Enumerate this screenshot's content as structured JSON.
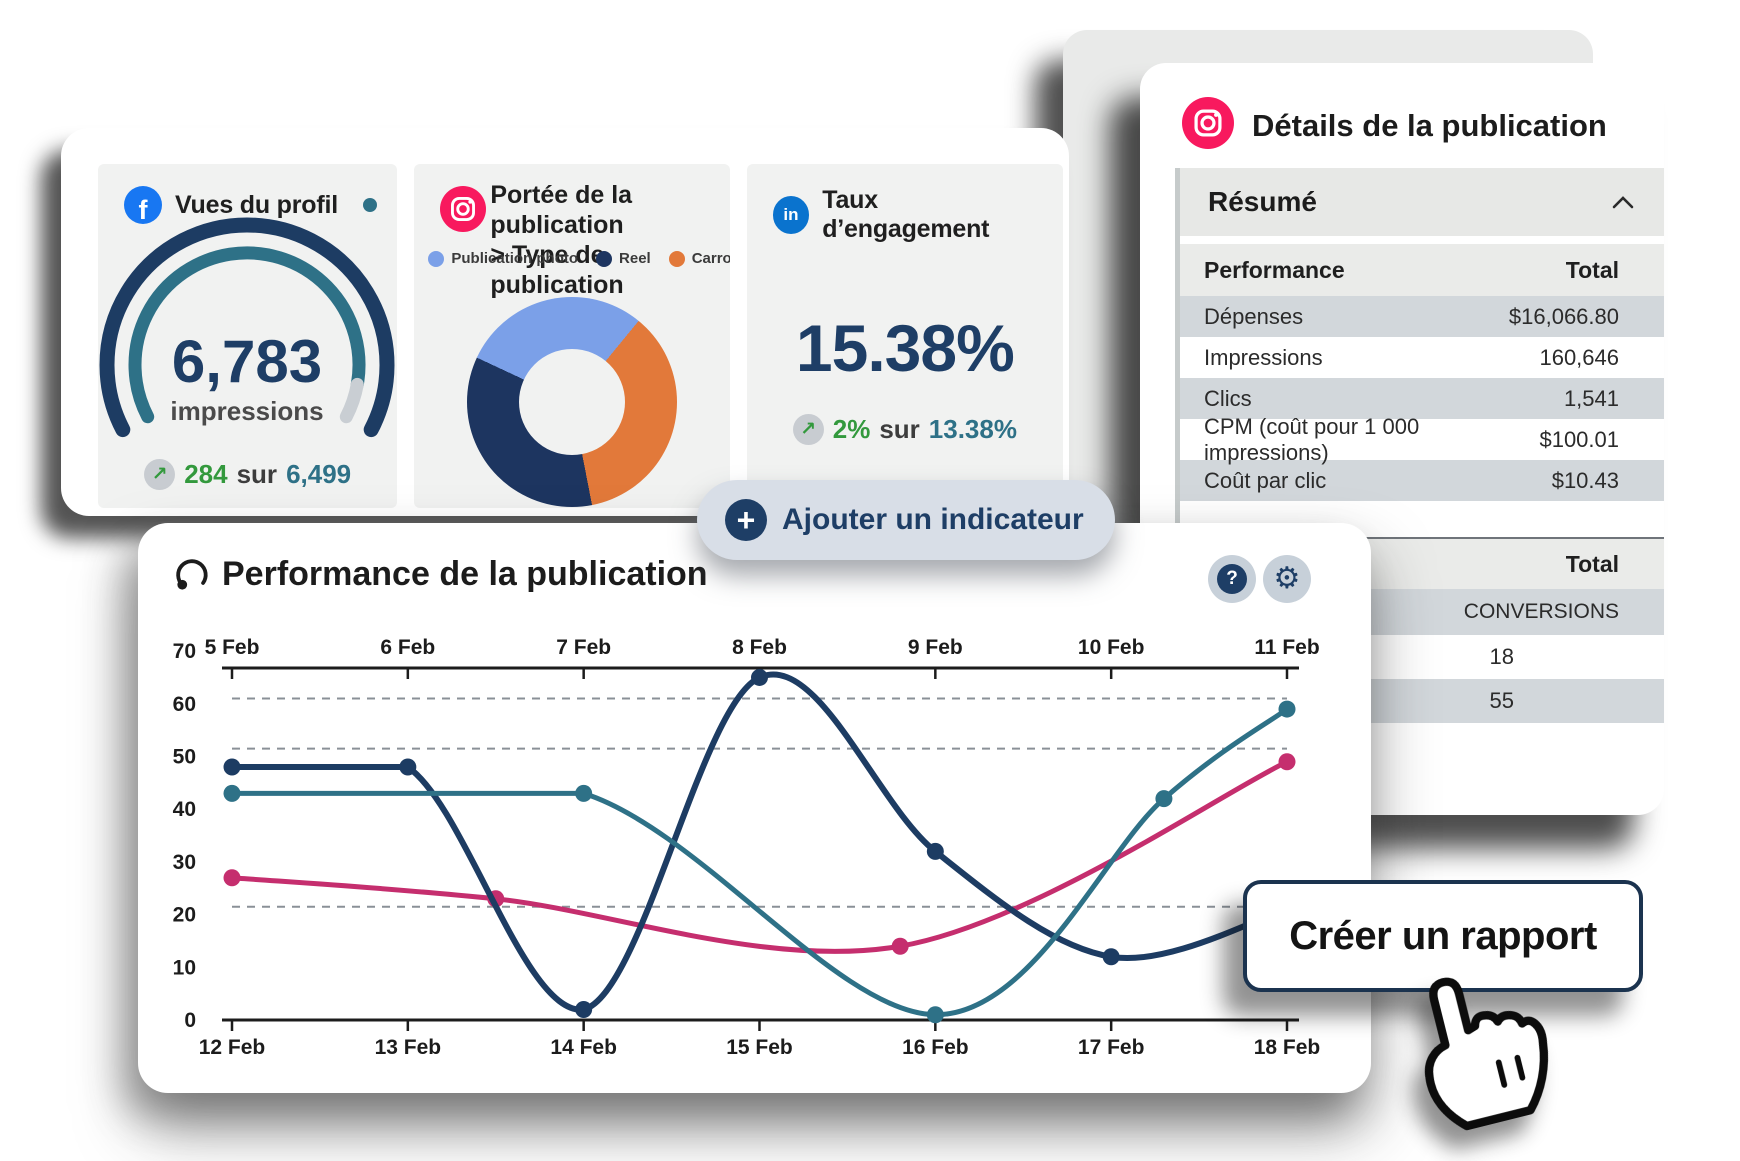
{
  "colors": {
    "navy": "#1e3e66",
    "teal": "#2e7187",
    "pink": "#c52e6e",
    "green": "#33993d",
    "facebook_blue": "#1877f2",
    "linkedin_blue": "#0a73ce",
    "instagram_pink": "#f8195e",
    "stripe_gray": "#d2d7db"
  },
  "icons": {
    "facebook_glyph": "f",
    "linkedin_glyph": "in",
    "plus_glyph": "+",
    "help_glyph": "?",
    "settings_glyph": "⚙",
    "trend_up_glyph": "↗"
  },
  "metrics": {
    "profile_views": {
      "title": "Vues du profil",
      "value": "6,783",
      "unit": "impressions",
      "delta": "284",
      "sur": "sur",
      "total": "6,499"
    },
    "reach": {
      "title_line1": "Portée de la publication",
      "title_line2": "> Type de publication",
      "slices": [
        {
          "label": "Publication photo",
          "color": "#7ba0e8",
          "pct": 29
        },
        {
          "label": "Reel",
          "color": "#1d3560",
          "pct": 35
        },
        {
          "label": "Carrousel",
          "color": "#e2793a",
          "pct": 36
        }
      ]
    },
    "engagement": {
      "title": "Taux d’engagement",
      "value": "15.38%",
      "delta": "2%",
      "sur": "sur",
      "previous": "13.38%"
    }
  },
  "details": {
    "title": "Détails de la publication",
    "section_label": "Résumé",
    "performance_table": {
      "header_left": "Performance",
      "header_right": "Total",
      "rows": [
        {
          "label": "Dépenses",
          "value": "$16,066.80"
        },
        {
          "label": "Impressions",
          "value": "160,646"
        },
        {
          "label": "Clics",
          "value": "1,541"
        },
        {
          "label": "CPM (coût pour 1 000 impressions)",
          "value": "$100.01"
        },
        {
          "label": "Coût par clic",
          "value": "$10.43"
        }
      ]
    },
    "totals_table": {
      "header_right": "Total",
      "group_label": "CONVERSIONS",
      "values": [
        "18",
        "55"
      ]
    }
  },
  "add_indicator": {
    "label": "Ajouter un indicateur"
  },
  "performance": {
    "title": "Performance de la publication"
  },
  "report_button": {
    "label": "Créer un rapport"
  },
  "chart_data": {
    "type": "line",
    "title": "Performance de la publication",
    "top_axis_labels": [
      "5 Feb",
      "6 Feb",
      "7 Feb",
      "8 Feb",
      "9 Feb",
      "10 Feb",
      "11 Feb"
    ],
    "bottom_axis_labels": [
      "12 Feb",
      "13 Feb",
      "14 Feb",
      "15 Feb",
      "16 Feb",
      "17 Feb",
      "18 Feb"
    ],
    "ylim": [
      0,
      70
    ],
    "yticks": [
      0,
      10,
      20,
      30,
      40,
      50,
      60,
      70
    ],
    "dashed_gridlines": [
      61,
      51.5,
      21.5
    ],
    "grid": "dashed-horizontal-only",
    "legend": "none",
    "series": [
      {
        "name": "pink-series",
        "color": "#c52e6e",
        "points": [
          {
            "x": 0,
            "y": 27,
            "marker": true
          },
          {
            "x": 1.5,
            "y": 23,
            "marker": true
          },
          {
            "x": 3.8,
            "y": 14,
            "marker": true
          },
          {
            "x": 6,
            "y": 49,
            "marker": true
          }
        ]
      },
      {
        "name": "navy-series",
        "color": "#1d3c63",
        "points": [
          {
            "x": 0,
            "y": 48,
            "marker": true
          },
          {
            "x": 1,
            "y": 48,
            "marker": true
          },
          {
            "x": 2,
            "y": 2,
            "marker": true
          },
          {
            "x": 3,
            "y": 65,
            "marker": true
          },
          {
            "x": 4,
            "y": 32,
            "marker": true
          },
          {
            "x": 5,
            "y": 12,
            "marker": true
          },
          {
            "x": 6,
            "y": 21,
            "marker": false
          }
        ]
      },
      {
        "name": "teal-series",
        "color": "#2e7187",
        "points": [
          {
            "x": 0,
            "y": 43,
            "marker": true
          },
          {
            "x": 2,
            "y": 43,
            "marker": true
          },
          {
            "x": 4,
            "y": 1,
            "marker": true
          },
          {
            "x": 5.3,
            "y": 42,
            "marker": true
          },
          {
            "x": 6,
            "y": 59,
            "marker": true
          }
        ]
      }
    ]
  }
}
